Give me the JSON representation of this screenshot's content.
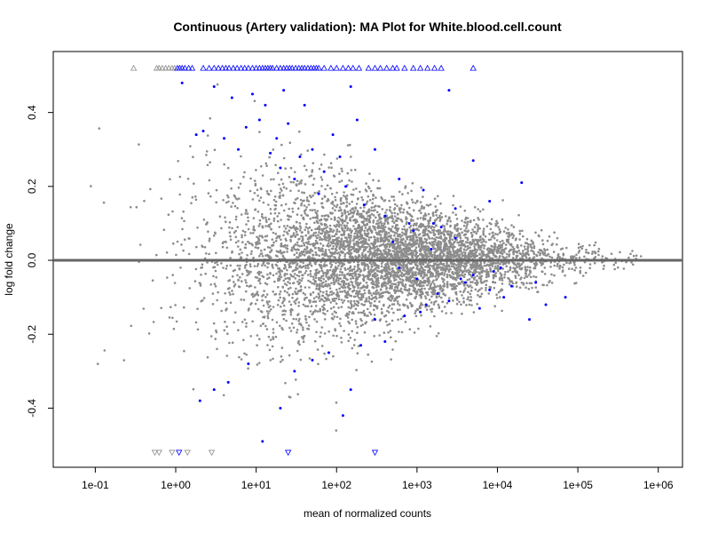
{
  "chart_data": {
    "type": "scatter",
    "title": "Continuous (Artery validation): MA Plot for White.blood.cell.count",
    "xlabel": "mean of normalized counts",
    "ylabel": "log fold change",
    "x_scale": "log10",
    "xlim": [
      0.03,
      2000000
    ],
    "ylim": [
      -0.56,
      0.565
    ],
    "grid": false,
    "legend": "none",
    "x_ticks": [
      {
        "value": 0.1,
        "label": "1e-01"
      },
      {
        "value": 1,
        "label": "1e+00"
      },
      {
        "value": 10,
        "label": "1e+01"
      },
      {
        "value": 100,
        "label": "1e+02"
      },
      {
        "value": 1000,
        "label": "1e+03"
      },
      {
        "value": 10000,
        "label": "1e+04"
      },
      {
        "value": 100000,
        "label": "1e+05"
      },
      {
        "value": 1000000,
        "label": "1e+06"
      }
    ],
    "y_ticks": [
      {
        "value": -0.4,
        "label": "-0.4"
      },
      {
        "value": -0.2,
        "label": "-0.2"
      },
      {
        "value": 0.0,
        "label": "0.0"
      },
      {
        "value": 0.2,
        "label": "0.2"
      },
      {
        "value": 0.4,
        "label": "0.4"
      }
    ],
    "reference_line": {
      "y": 0,
      "color": "#666666"
    },
    "series_colors": {
      "not_significant": "#8c8c8c",
      "significant": "#0000ff"
    },
    "clipped_upper": {
      "y": 0.52,
      "not_significant_x": [
        0.3,
        0.58,
        0.62,
        0.68,
        0.75,
        0.82,
        0.9,
        0.97
      ],
      "significant_x": [
        1.05,
        1.12,
        1.2,
        1.3,
        1.45,
        1.6,
        2.2,
        2.6,
        3.0,
        3.4,
        3.8,
        4.2,
        4.6,
        5.2,
        5.8,
        6.5,
        7.2,
        8.0,
        9.0,
        10,
        11,
        12,
        13,
        14,
        15,
        16,
        18,
        20,
        22,
        24,
        26,
        28,
        31,
        34,
        37,
        40,
        44,
        48,
        52,
        56,
        60,
        70,
        85,
        100,
        120,
        140,
        160,
        190,
        250,
        300,
        350,
        420,
        500,
        560,
        700,
        900,
        1100,
        1350,
        1650,
        2000,
        5000
      ]
    },
    "clipped_lower": {
      "y": -0.52,
      "not_significant_x": [
        0.55,
        0.62,
        0.9,
        1.4,
        2.8
      ],
      "significant_x": [
        1.1,
        25,
        300
      ]
    },
    "significant_points": [
      [
        1.2,
        0.48
      ],
      [
        1.8,
        0.34
      ],
      [
        2.2,
        0.35
      ],
      [
        3.0,
        0.47
      ],
      [
        4.0,
        0.33
      ],
      [
        5.0,
        0.44
      ],
      [
        6.0,
        0.3
      ],
      [
        7.5,
        0.36
      ],
      [
        9.0,
        0.45
      ],
      [
        11,
        0.38
      ],
      [
        13,
        0.42
      ],
      [
        15,
        0.29
      ],
      [
        18,
        0.33
      ],
      [
        20,
        0.25
      ],
      [
        22,
        0.46
      ],
      [
        25,
        0.37
      ],
      [
        30,
        0.22
      ],
      [
        35,
        0.28
      ],
      [
        40,
        0.42
      ],
      [
        50,
        0.3
      ],
      [
        60,
        0.18
      ],
      [
        70,
        0.24
      ],
      [
        90,
        0.34
      ],
      [
        110,
        0.28
      ],
      [
        130,
        0.2
      ],
      [
        150,
        0.47
      ],
      [
        180,
        0.38
      ],
      [
        220,
        0.15
      ],
      [
        300,
        0.3
      ],
      [
        400,
        0.12
      ],
      [
        600,
        0.22
      ],
      [
        800,
        0.1
      ],
      [
        1200,
        0.19
      ],
      [
        1600,
        0.1
      ],
      [
        2000,
        0.09
      ],
      [
        2500,
        0.46
      ],
      [
        3000,
        0.14
      ],
      [
        5000,
        0.27
      ],
      [
        8000,
        0.16
      ],
      [
        20000,
        0.21
      ],
      [
        500,
        0.05
      ],
      [
        900,
        0.08
      ],
      [
        1500,
        0.03
      ],
      [
        3000,
        0.06
      ],
      [
        600,
        -0.02
      ],
      [
        1000,
        -0.05
      ],
      [
        1800,
        -0.09
      ],
      [
        2500,
        -0.11
      ],
      [
        4000,
        -0.06
      ],
      [
        6000,
        -0.13
      ],
      [
        12000,
        -0.1
      ],
      [
        30000,
        -0.06
      ],
      [
        40000,
        -0.12
      ],
      [
        70000,
        -0.1
      ],
      [
        25000,
        -0.16
      ],
      [
        8000,
        -0.08
      ],
      [
        5000,
        -0.04
      ],
      [
        15000,
        -0.07
      ],
      [
        2.0,
        -0.38
      ],
      [
        3.0,
        -0.35
      ],
      [
        4.5,
        -0.33
      ],
      [
        8,
        -0.28
      ],
      [
        12,
        -0.49
      ],
      [
        20,
        -0.4
      ],
      [
        30,
        -0.3
      ],
      [
        50,
        -0.27
      ],
      [
        80,
        -0.25
      ],
      [
        120,
        -0.42
      ],
      [
        150,
        -0.35
      ],
      [
        200,
        -0.23
      ],
      [
        300,
        -0.16
      ],
      [
        400,
        -0.22
      ],
      [
        700,
        -0.15
      ],
      [
        1100,
        -0.14
      ],
      [
        1300,
        -0.12
      ],
      [
        3500,
        -0.05
      ],
      [
        9000,
        -0.03
      ],
      [
        11000,
        -0.02
      ]
    ],
    "background_description_generated": true
  }
}
